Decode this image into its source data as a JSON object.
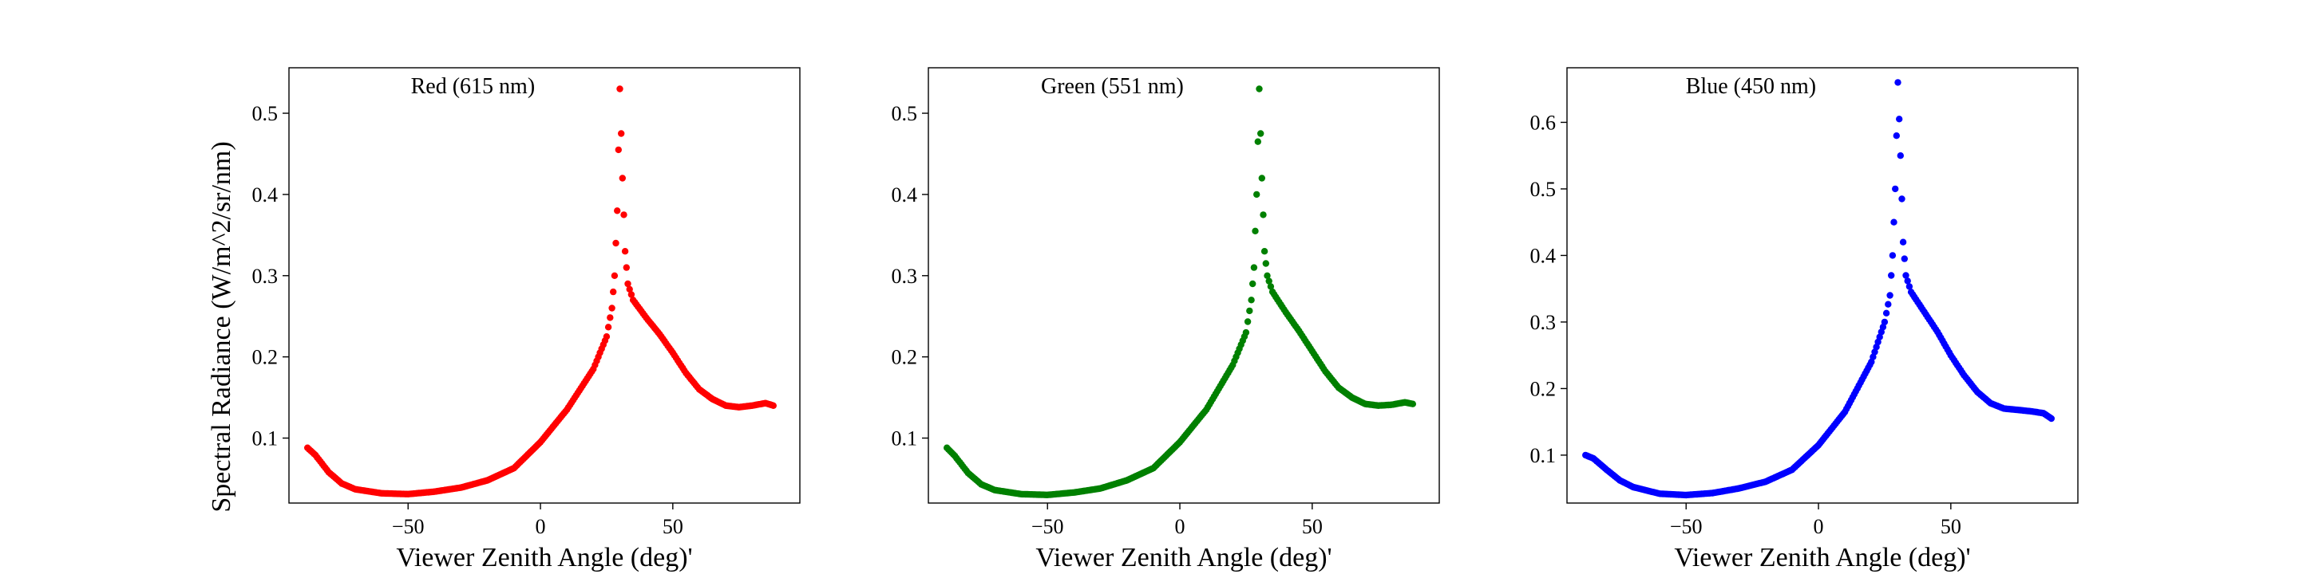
{
  "figure": {
    "ylabel": "Spectral Radiance (W/m^2/sr/nm)",
    "xlabel": "Viewer Zenith Angle (deg)'"
  },
  "chart_data": [
    {
      "type": "scatter",
      "title": "Red (615 nm)",
      "xlabel": "Viewer Zenith Angle (deg)'",
      "ylabel": "Spectral Radiance (W/m^2/sr/nm)",
      "color": "#ff0000",
      "xlim": [
        -95,
        98
      ],
      "ylim": [
        0.02,
        0.556
      ],
      "xticks": [
        -50,
        0,
        50
      ],
      "yticks": [
        0.1,
        0.2,
        0.3,
        0.4,
        0.5
      ],
      "grid": false,
      "points": [
        [
          -88,
          0.088
        ],
        [
          -85,
          0.079
        ],
        [
          -80,
          0.058
        ],
        [
          -75,
          0.044
        ],
        [
          -70,
          0.037
        ],
        [
          -60,
          0.032
        ],
        [
          -50,
          0.031
        ],
        [
          -40,
          0.034
        ],
        [
          -30,
          0.039
        ],
        [
          -20,
          0.048
        ],
        [
          -10,
          0.063
        ],
        [
          0,
          0.095
        ],
        [
          10,
          0.135
        ],
        [
          20,
          0.185
        ],
        [
          25,
          0.225
        ],
        [
          27,
          0.26
        ],
        [
          28,
          0.3
        ],
        [
          29,
          0.38
        ],
        [
          30,
          0.53
        ],
        [
          31,
          0.42
        ],
        [
          32,
          0.33
        ],
        [
          33,
          0.29
        ],
        [
          35,
          0.27
        ],
        [
          40,
          0.248
        ],
        [
          45,
          0.228
        ],
        [
          50,
          0.205
        ],
        [
          55,
          0.18
        ],
        [
          60,
          0.16
        ],
        [
          65,
          0.148
        ],
        [
          70,
          0.14
        ],
        [
          75,
          0.138
        ],
        [
          80,
          0.14
        ],
        [
          85,
          0.143
        ],
        [
          88,
          0.14
        ]
      ]
    },
    {
      "type": "scatter",
      "title": "Green (551 nm)",
      "xlabel": "Viewer Zenith Angle (deg)'",
      "ylabel": "",
      "color": "#008000",
      "xlim": [
        -95,
        98
      ],
      "ylim": [
        0.02,
        0.556
      ],
      "xticks": [
        -50,
        0,
        50
      ],
      "yticks": [
        0.1,
        0.2,
        0.3,
        0.4,
        0.5
      ],
      "grid": false,
      "points": [
        [
          -88,
          0.088
        ],
        [
          -85,
          0.078
        ],
        [
          -80,
          0.057
        ],
        [
          -75,
          0.043
        ],
        [
          -70,
          0.036
        ],
        [
          -60,
          0.031
        ],
        [
          -50,
          0.03
        ],
        [
          -40,
          0.033
        ],
        [
          -30,
          0.038
        ],
        [
          -20,
          0.048
        ],
        [
          -10,
          0.063
        ],
        [
          0,
          0.095
        ],
        [
          10,
          0.135
        ],
        [
          20,
          0.19
        ],
        [
          25,
          0.23
        ],
        [
          27,
          0.27
        ],
        [
          28,
          0.31
        ],
        [
          29,
          0.4
        ],
        [
          30,
          0.53
        ],
        [
          31,
          0.42
        ],
        [
          32,
          0.33
        ],
        [
          33,
          0.3
        ],
        [
          35,
          0.28
        ],
        [
          40,
          0.255
        ],
        [
          45,
          0.232
        ],
        [
          50,
          0.207
        ],
        [
          55,
          0.182
        ],
        [
          60,
          0.162
        ],
        [
          65,
          0.15
        ],
        [
          70,
          0.142
        ],
        [
          75,
          0.14
        ],
        [
          80,
          0.141
        ],
        [
          85,
          0.144
        ],
        [
          88,
          0.142
        ]
      ]
    },
    {
      "type": "scatter",
      "title": "Blue (450 nm)",
      "xlabel": "Viewer Zenith Angle (deg)'",
      "ylabel": "",
      "color": "#0000ff",
      "xlim": [
        -95,
        98
      ],
      "ylim": [
        0.028,
        0.682
      ],
      "xticks": [
        -50,
        0,
        50
      ],
      "yticks": [
        0.1,
        0.2,
        0.3,
        0.4,
        0.5,
        0.6
      ],
      "grid": false,
      "points": [
        [
          -88,
          0.1
        ],
        [
          -85,
          0.095
        ],
        [
          -80,
          0.078
        ],
        [
          -75,
          0.062
        ],
        [
          -70,
          0.052
        ],
        [
          -60,
          0.042
        ],
        [
          -50,
          0.04
        ],
        [
          -40,
          0.043
        ],
        [
          -30,
          0.05
        ],
        [
          -20,
          0.06
        ],
        [
          -10,
          0.078
        ],
        [
          0,
          0.115
        ],
        [
          10,
          0.165
        ],
        [
          20,
          0.24
        ],
        [
          25,
          0.3
        ],
        [
          27,
          0.34
        ],
        [
          28,
          0.4
        ],
        [
          29,
          0.5
        ],
        [
          30,
          0.66
        ],
        [
          31,
          0.55
        ],
        [
          32,
          0.42
        ],
        [
          33,
          0.37
        ],
        [
          35,
          0.345
        ],
        [
          40,
          0.315
        ],
        [
          45,
          0.285
        ],
        [
          50,
          0.25
        ],
        [
          55,
          0.22
        ],
        [
          60,
          0.195
        ],
        [
          65,
          0.178
        ],
        [
          70,
          0.17
        ],
        [
          75,
          0.168
        ],
        [
          80,
          0.166
        ],
        [
          85,
          0.163
        ],
        [
          88,
          0.155
        ]
      ]
    }
  ]
}
